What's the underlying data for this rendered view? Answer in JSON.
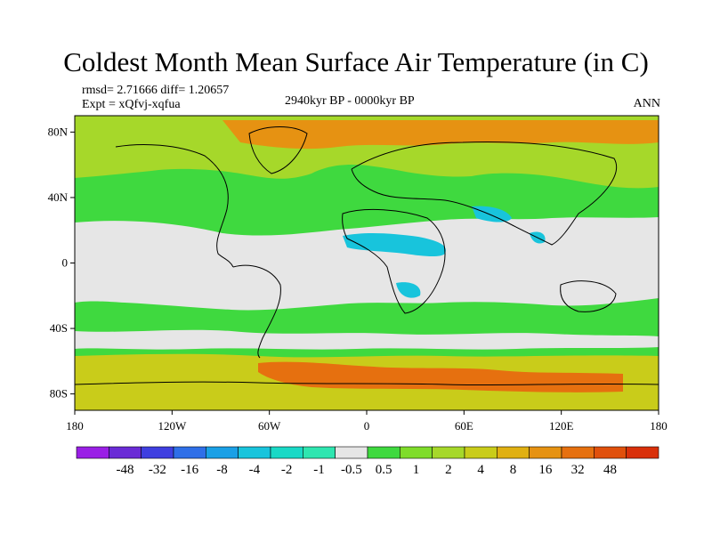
{
  "header": {
    "title": "Coldest Month Mean Surface Air Temperature (in C)",
    "stats": "rmsd= 2.71666 diff= 1.20657",
    "expt": "Expt = xQfvj-xqfua",
    "period": "2940kyr BP - 0000kyr BP",
    "season": "ANN"
  },
  "axes": {
    "x_ticks": [
      "180",
      "120W",
      "60W",
      "0",
      "60E",
      "120E",
      "180"
    ],
    "y_ticks": [
      "80N",
      "40N",
      "0",
      "40S",
      "80S"
    ]
  },
  "colorbar": {
    "colors": [
      "#9a1fe6",
      "#6a2bd6",
      "#3f3fe0",
      "#2f6fe8",
      "#1aa0e6",
      "#18c4dc",
      "#19d9c6",
      "#2ee6b0",
      "#e6e6e6",
      "#3fd93f",
      "#7fdc2a",
      "#a6d82a",
      "#c9cc1a",
      "#e0b012",
      "#e69212",
      "#e6700f",
      "#e0500c",
      "#d9300a"
    ],
    "labels": [
      "-48",
      "-32",
      "-16",
      "-8",
      "-4",
      "-2",
      "-1",
      "-0.5",
      "0.5",
      "1",
      "2",
      "4",
      "8",
      "16",
      "32",
      "48"
    ]
  },
  "map_colors": {
    "neutral": "#e6e6e6",
    "light_green": "#3fd93f",
    "green": "#7fdc2a",
    "yellow_green": "#a6d82a",
    "yellow": "#c9cc1a",
    "orange": "#e69212",
    "dark_orange": "#e6700f",
    "cyan": "#18c4dc",
    "blue": "#2f6fe8"
  }
}
